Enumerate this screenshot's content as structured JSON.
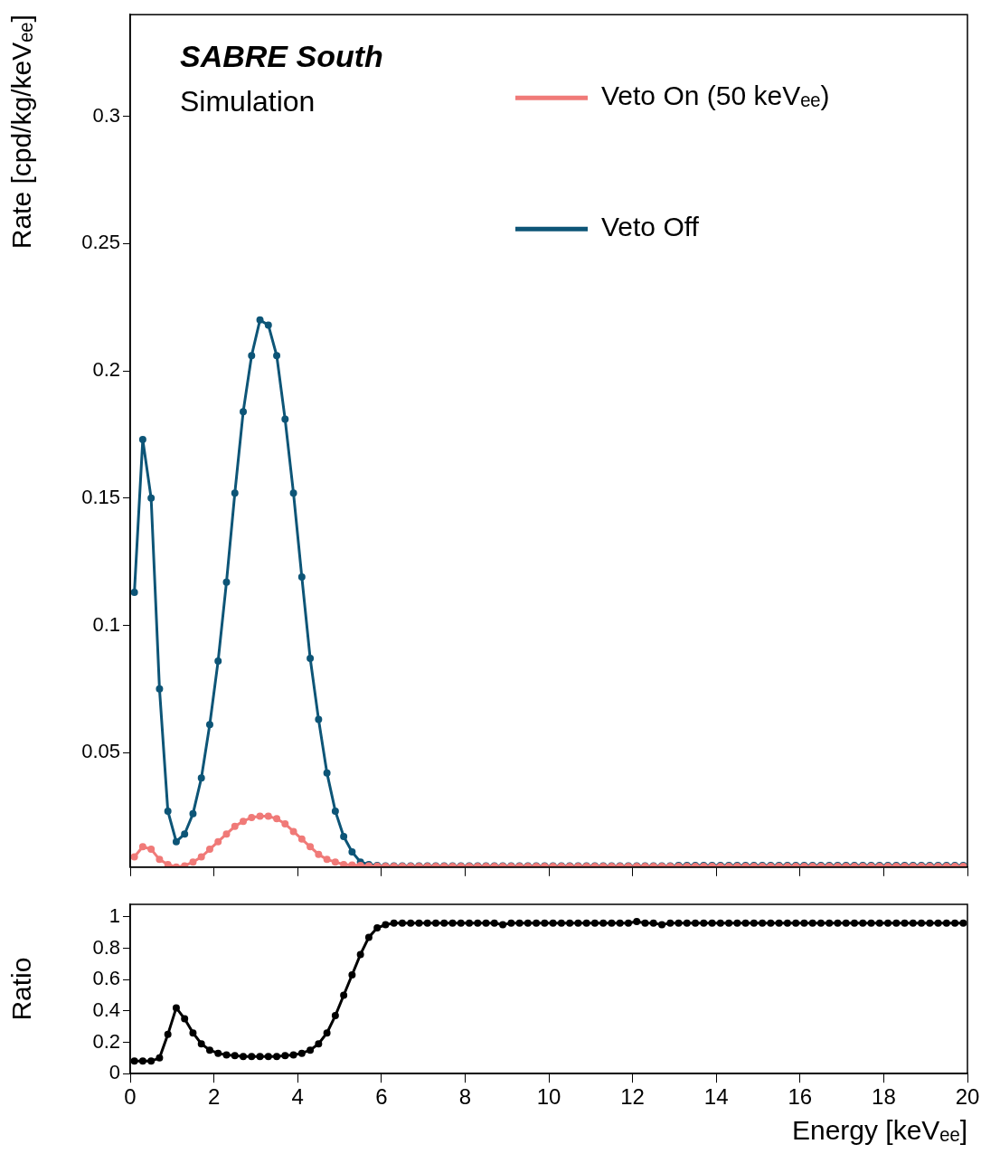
{
  "chart_data": [
    {
      "type": "line",
      "title": "SABRE South",
      "subtitle": "Simulation",
      "y_label": "Rate [cpd/kg/keVₑₑ]",
      "x": [
        0.1,
        0.3,
        0.5,
        0.7,
        0.9,
        1.1,
        1.3,
        1.5,
        1.7,
        1.9,
        2.1,
        2.3,
        2.5,
        2.7,
        2.9,
        3.1,
        3.3,
        3.5,
        3.7,
        3.9,
        4.1,
        4.3,
        4.5,
        4.7,
        4.9,
        5.1,
        5.3,
        5.5,
        5.7,
        5.9,
        6.1,
        6.3,
        6.5,
        6.7,
        6.9,
        7.1,
        7.3,
        7.5,
        7.7,
        7.9,
        8.1,
        8.3,
        8.5,
        8.7,
        8.9,
        9.1,
        9.3,
        9.5,
        9.7,
        9.9,
        10.1,
        10.3,
        10.5,
        10.7,
        10.9,
        11.1,
        11.3,
        11.5,
        11.7,
        11.9,
        12.1,
        12.3,
        12.5,
        12.7,
        12.9,
        13.1,
        13.3,
        13.5,
        13.7,
        13.9,
        14.1,
        14.3,
        14.5,
        14.7,
        14.9,
        15.1,
        15.3,
        15.5,
        15.7,
        15.9,
        16.1,
        16.3,
        16.5,
        16.7,
        16.9,
        17.1,
        17.3,
        17.5,
        17.7,
        17.9,
        18.1,
        18.3,
        18.5,
        18.7,
        18.9,
        19.1,
        19.3,
        19.5,
        19.7,
        19.9
      ],
      "series": [
        {
          "name": "Veto On (50 keVₑₑ)",
          "color": "#f07a78",
          "values": [
            0.009,
            0.013,
            0.012,
            0.008,
            0.006,
            0.005,
            0.0055,
            0.007,
            0.009,
            0.012,
            0.015,
            0.018,
            0.021,
            0.023,
            0.0245,
            0.025,
            0.025,
            0.024,
            0.022,
            0.019,
            0.016,
            0.013,
            0.01,
            0.008,
            0.007,
            0.006,
            0.0058,
            0.0056,
            0.0055,
            0.0054,
            0.0053,
            0.0053,
            0.0053,
            0.0053,
            0.0053,
            0.0053,
            0.0053,
            0.0053,
            0.0053,
            0.0053,
            0.0053,
            0.0053,
            0.0053,
            0.0053,
            0.0053,
            0.0053,
            0.0053,
            0.0053,
            0.0053,
            0.0053,
            0.0053,
            0.0053,
            0.0053,
            0.0053,
            0.0053,
            0.0053,
            0.0053,
            0.0053,
            0.0053,
            0.0053,
            0.0053,
            0.0053,
            0.0053,
            0.0053,
            0.0053,
            0.0053,
            0.0053,
            0.0053,
            0.0053,
            0.0053,
            0.0053,
            0.0053,
            0.0053,
            0.0053,
            0.0053,
            0.0053,
            0.0053,
            0.0053,
            0.0053,
            0.0053,
            0.0053,
            0.0053,
            0.0053,
            0.0053,
            0.0053,
            0.0053,
            0.0053,
            0.0053,
            0.0053,
            0.0053,
            0.0053,
            0.0053,
            0.0053,
            0.0053,
            0.0053,
            0.0053,
            0.0053,
            0.0053,
            0.0053,
            0.0053
          ]
        },
        {
          "name": "Veto Off",
          "color": "#0d5577",
          "values": [
            0.113,
            0.173,
            0.15,
            0.075,
            0.027,
            0.015,
            0.018,
            0.026,
            0.04,
            0.061,
            0.086,
            0.117,
            0.152,
            0.184,
            0.206,
            0.22,
            0.218,
            0.206,
            0.181,
            0.152,
            0.119,
            0.087,
            0.063,
            0.042,
            0.027,
            0.017,
            0.011,
            0.007,
            0.006,
            0.0056,
            0.0055,
            0.0055,
            0.0055,
            0.0055,
            0.0055,
            0.0055,
            0.0055,
            0.0055,
            0.0055,
            0.0055,
            0.0055,
            0.0055,
            0.0055,
            0.0055,
            0.0055,
            0.0055,
            0.0055,
            0.0055,
            0.0055,
            0.0055,
            0.0055,
            0.0055,
            0.0055,
            0.0055,
            0.0055,
            0.0055,
            0.0055,
            0.0055,
            0.0055,
            0.0055,
            0.0055,
            0.0055,
            0.0055,
            0.0055,
            0.0055,
            0.0056,
            0.0056,
            0.0056,
            0.0056,
            0.0056,
            0.0056,
            0.0056,
            0.0056,
            0.0056,
            0.0056,
            0.0056,
            0.0056,
            0.0056,
            0.0056,
            0.0056,
            0.0056,
            0.0056,
            0.0056,
            0.0056,
            0.0056,
            0.0056,
            0.0056,
            0.0056,
            0.0056,
            0.0056,
            0.0056,
            0.0056,
            0.0056,
            0.0056,
            0.0056,
            0.0056,
            0.0056,
            0.0056,
            0.0056,
            0.0056
          ]
        }
      ],
      "xlim": [
        0,
        20
      ],
      "xticks": [
        0,
        2,
        4,
        6,
        8,
        10,
        12,
        14,
        16,
        18,
        20
      ],
      "ylim": [
        0.005,
        0.34
      ],
      "yticks": [
        0.05,
        0.1,
        0.15,
        0.2,
        0.25,
        0.3
      ],
      "grid": false,
      "legend": "upper right",
      "marker": "circle",
      "line_style": "solid",
      "tick_labels": "y"
    },
    {
      "type": "line",
      "y_label": "Ratio",
      "x_label": "Energy [keVₑₑ]",
      "x": [
        0.1,
        0.3,
        0.5,
        0.7,
        0.9,
        1.1,
        1.3,
        1.5,
        1.7,
        1.9,
        2.1,
        2.3,
        2.5,
        2.7,
        2.9,
        3.1,
        3.3,
        3.5,
        3.7,
        3.9,
        4.1,
        4.3,
        4.5,
        4.7,
        4.9,
        5.1,
        5.3,
        5.5,
        5.7,
        5.9,
        6.1,
        6.3,
        6.5,
        6.7,
        6.9,
        7.1,
        7.3,
        7.5,
        7.7,
        7.9,
        8.1,
        8.3,
        8.5,
        8.7,
        8.9,
        9.1,
        9.3,
        9.5,
        9.7,
        9.9,
        10.1,
        10.3,
        10.5,
        10.7,
        10.9,
        11.1,
        11.3,
        11.5,
        11.7,
        11.9,
        12.1,
        12.3,
        12.5,
        12.7,
        12.9,
        13.1,
        13.3,
        13.5,
        13.7,
        13.9,
        14.1,
        14.3,
        14.5,
        14.7,
        14.9,
        15.1,
        15.3,
        15.5,
        15.7,
        15.9,
        16.1,
        16.3,
        16.5,
        16.7,
        16.9,
        17.1,
        17.3,
        17.5,
        17.7,
        17.9,
        18.1,
        18.3,
        18.5,
        18.7,
        18.9,
        19.1,
        19.3,
        19.5,
        19.7,
        19.9
      ],
      "series": [
        {
          "color": "#000000",
          "values": [
            0.08,
            0.08,
            0.08,
            0.1,
            0.25,
            0.42,
            0.35,
            0.26,
            0.19,
            0.15,
            0.13,
            0.12,
            0.115,
            0.11,
            0.11,
            0.11,
            0.11,
            0.11,
            0.115,
            0.12,
            0.13,
            0.15,
            0.19,
            0.26,
            0.37,
            0.5,
            0.63,
            0.76,
            0.87,
            0.93,
            0.95,
            0.96,
            0.96,
            0.96,
            0.96,
            0.96,
            0.96,
            0.96,
            0.96,
            0.96,
            0.96,
            0.96,
            0.96,
            0.96,
            0.95,
            0.96,
            0.96,
            0.96,
            0.96,
            0.96,
            0.96,
            0.96,
            0.96,
            0.96,
            0.96,
            0.96,
            0.96,
            0.96,
            0.96,
            0.96,
            0.97,
            0.96,
            0.96,
            0.95,
            0.96,
            0.96,
            0.96,
            0.96,
            0.96,
            0.96,
            0.96,
            0.96,
            0.96,
            0.96,
            0.96,
            0.96,
            0.96,
            0.96,
            0.96,
            0.96,
            0.96,
            0.96,
            0.96,
            0.96,
            0.96,
            0.96,
            0.96,
            0.96,
            0.96,
            0.96,
            0.96,
            0.96,
            0.96,
            0.96,
            0.96,
            0.96,
            0.96,
            0.96,
            0.96,
            0.96
          ]
        }
      ],
      "xlim": [
        0,
        20
      ],
      "xticks": [
        0,
        2,
        4,
        6,
        8,
        10,
        12,
        14,
        16,
        18,
        20
      ],
      "ylim": [
        0,
        1.08
      ],
      "yticks": [
        0,
        0.2,
        0.4,
        0.6,
        0.8,
        1
      ],
      "grid": false,
      "marker": "circle",
      "line_style": "solid"
    }
  ]
}
